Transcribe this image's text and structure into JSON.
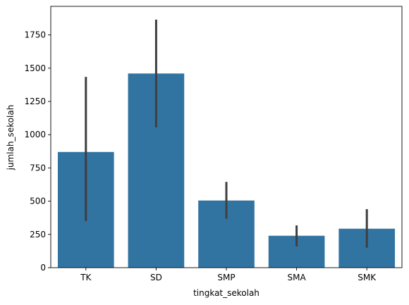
{
  "chart_data": {
    "type": "bar",
    "categories": [
      "TK",
      "SD",
      "SMP",
      "SMA",
      "SMK"
    ],
    "values": [
      870,
      1460,
      505,
      240,
      293
    ],
    "ci_low": [
      350,
      1055,
      368,
      160,
      150
    ],
    "ci_high": [
      1435,
      1865,
      645,
      318,
      440
    ],
    "xlabel": "tingkat_sekolah",
    "ylabel": "jumlah_sekolah",
    "ylim": [
      0,
      1965
    ],
    "yticks": [
      0,
      250,
      500,
      750,
      1000,
      1250,
      1500,
      1750
    ],
    "grid": false,
    "colors": {
      "bar": "#3274a1",
      "errorbar": "#3f3f3f",
      "axis": "#000000"
    }
  }
}
